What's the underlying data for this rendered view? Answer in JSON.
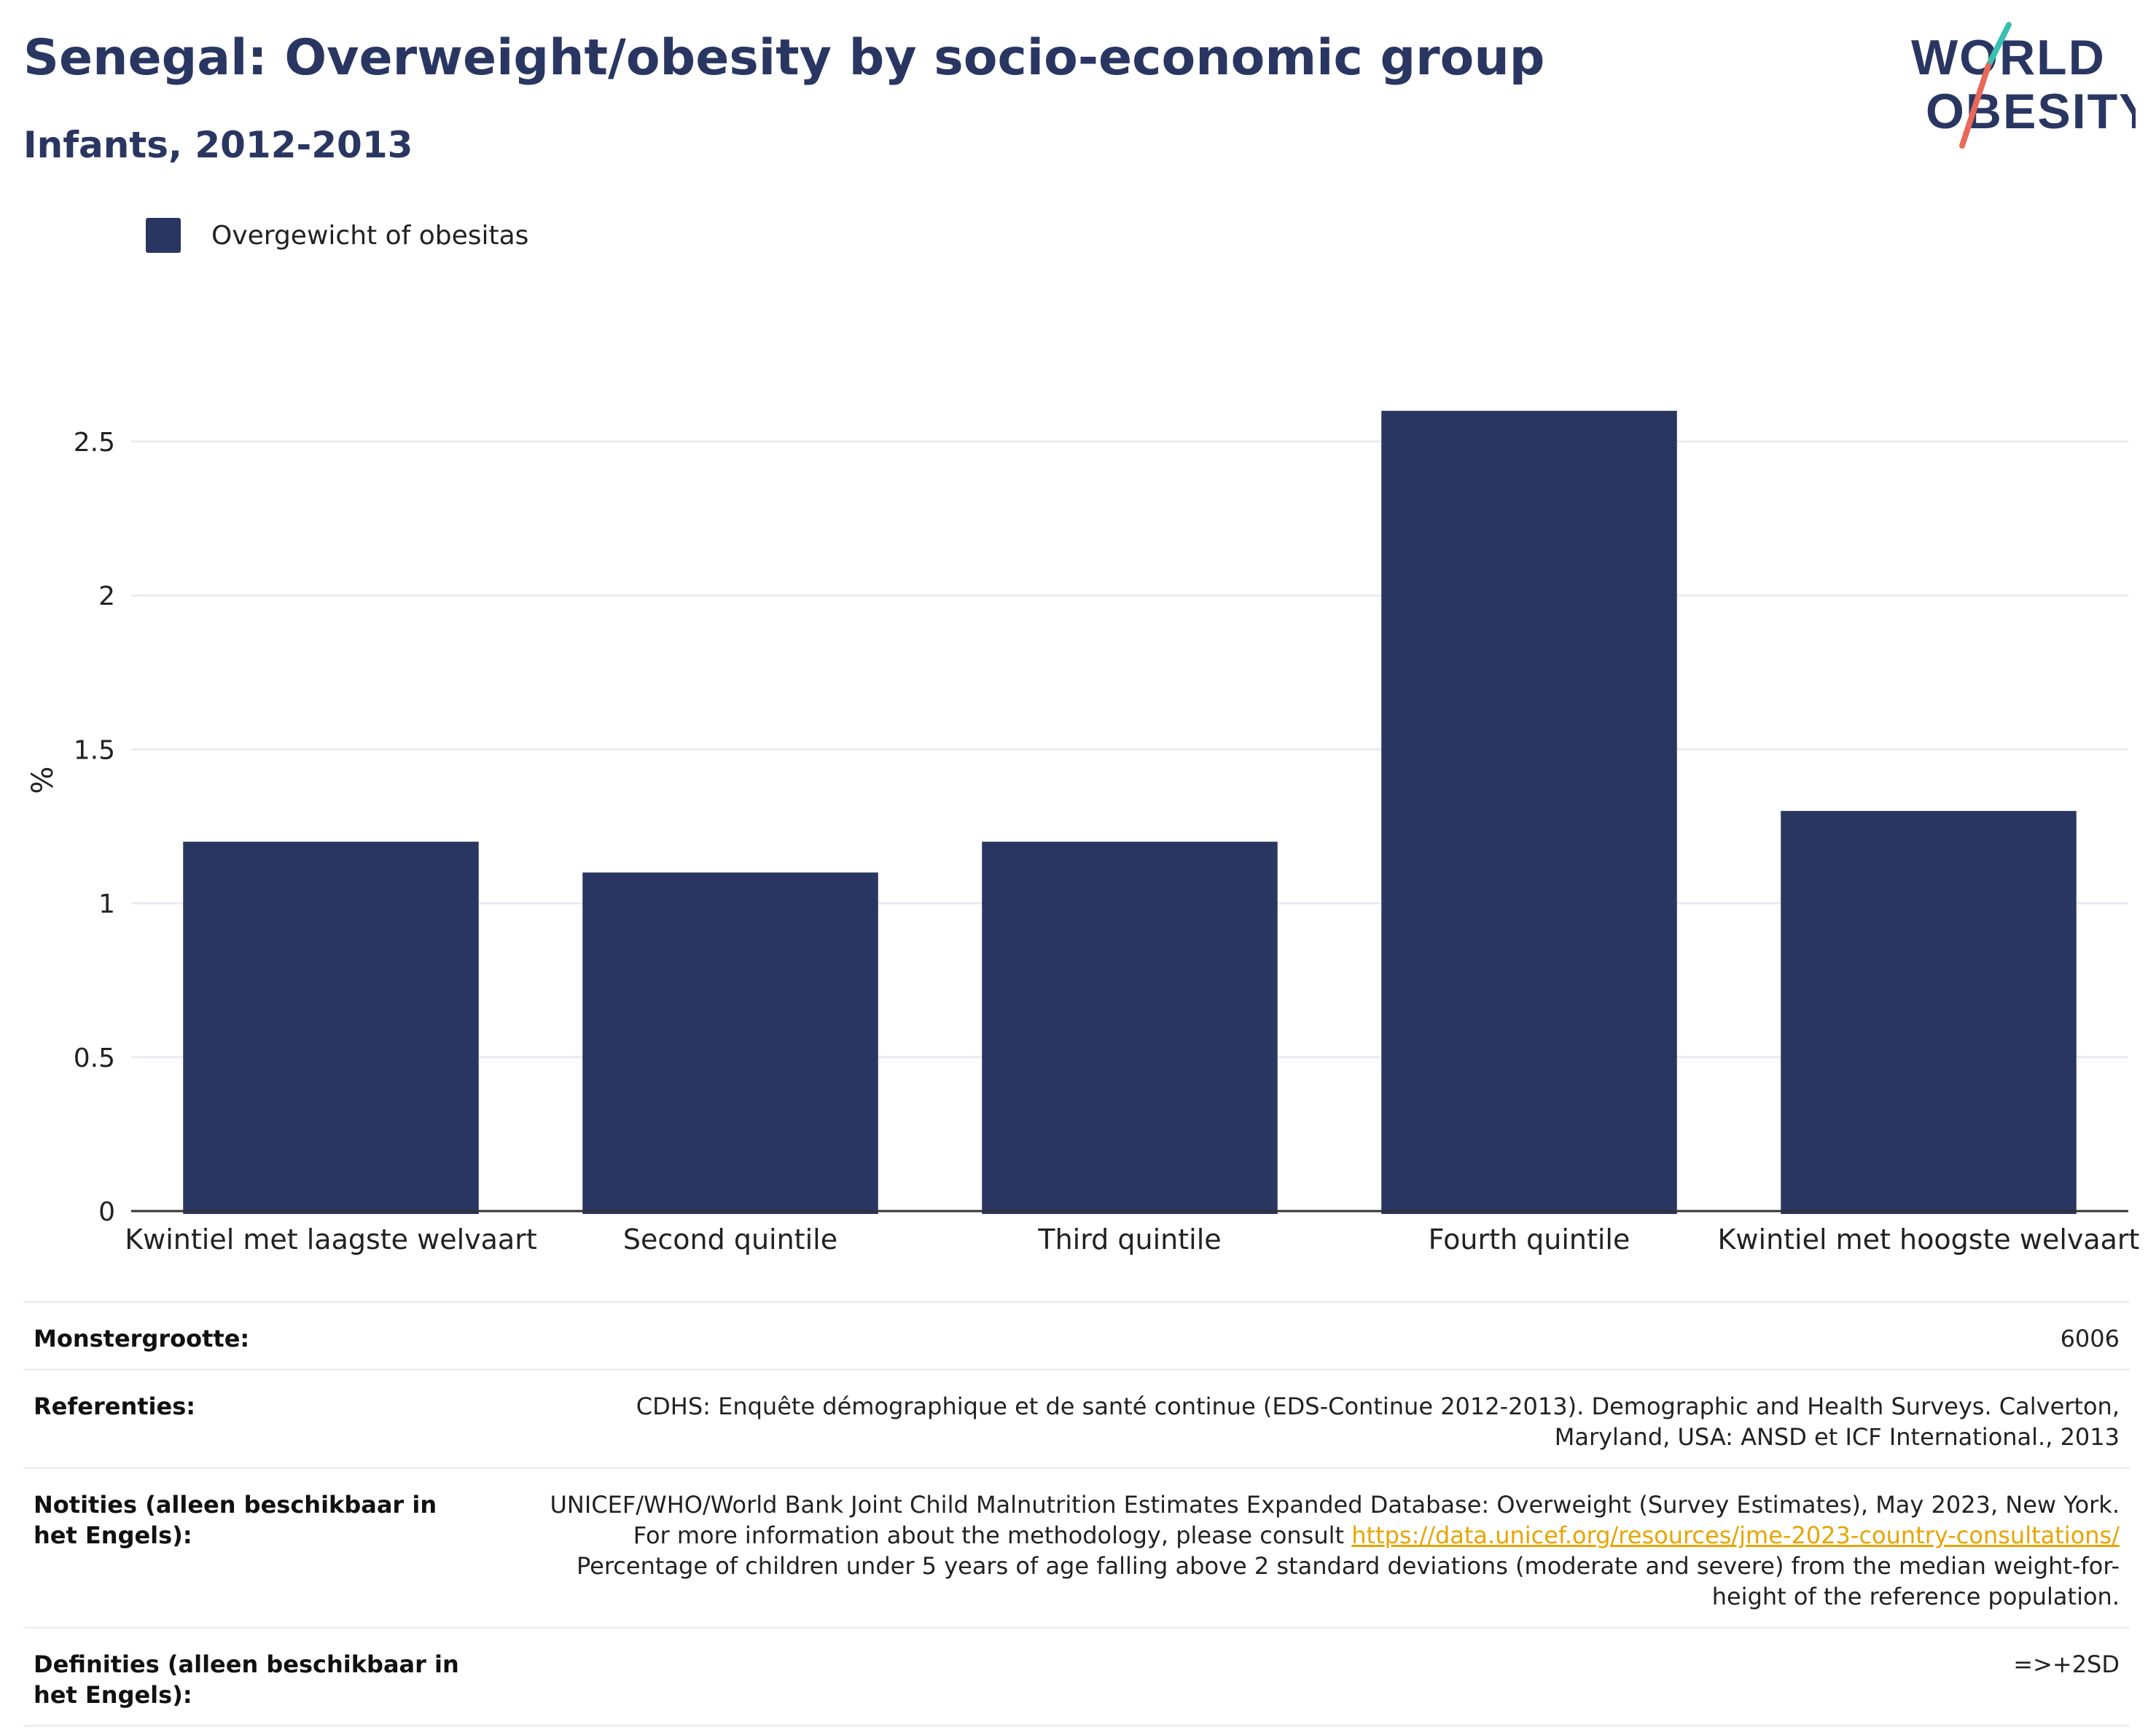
{
  "header": {
    "title": "Senegal: Overweight/obesity by socio-economic group",
    "subtitle": "Infants, 2012-2013"
  },
  "logo": {
    "line1": "WORLD",
    "line2": "OBESITY",
    "accent_teal": "#3bbfb0",
    "accent_coral": "#e8685a",
    "text_color": "#2a3662"
  },
  "chart_data": {
    "type": "bar",
    "categories": [
      "Kwintiel met laagste welvaart",
      "Second quintile",
      "Third quintile",
      "Fourth quintile",
      "Kwintiel met hoogste welvaart"
    ],
    "series": [
      {
        "name": "Overgewicht of obesitas",
        "values": [
          1.2,
          1.1,
          1.2,
          2.6,
          1.3
        ],
        "color": "#2a3662"
      }
    ],
    "ylabel": "%",
    "xlabel": "",
    "ylim": [
      0,
      2.5
    ],
    "yticks": [
      "0",
      "0.5",
      "1",
      "1.5",
      "2",
      "2.5"
    ],
    "grid": true,
    "legend_position": "top-left"
  },
  "footer": {
    "sample_size_label": "Monstergrootte:",
    "sample_size_value": "6006",
    "references_label": "Referenties:",
    "references_value": "CDHS: Enquête démographique et de santé continue (EDS-Continue 2012-2013). Demographic and Health Surveys. Calverton, Maryland, USA: ANSD et ICF International., 2013",
    "notes_label": "Notities (alleen beschikbaar in het Engels):",
    "notes_text_1": "UNICEF/WHO/World Bank Joint Child Malnutrition Estimates Expanded Database: Overweight (Survey Estimates), May 2023, New York. For more information about the methodology, please consult ",
    "notes_link": "https://data.unicef.org/resources/jme-2023-country-consultations/",
    "notes_text_2": " Percentage of children under 5 years of age falling above 2 standard deviations (moderate and severe) from the median weight-for-height of the reference population.",
    "definitions_label": "Definities (alleen beschikbaar in het Engels):",
    "definitions_value": "=>+2SD"
  }
}
